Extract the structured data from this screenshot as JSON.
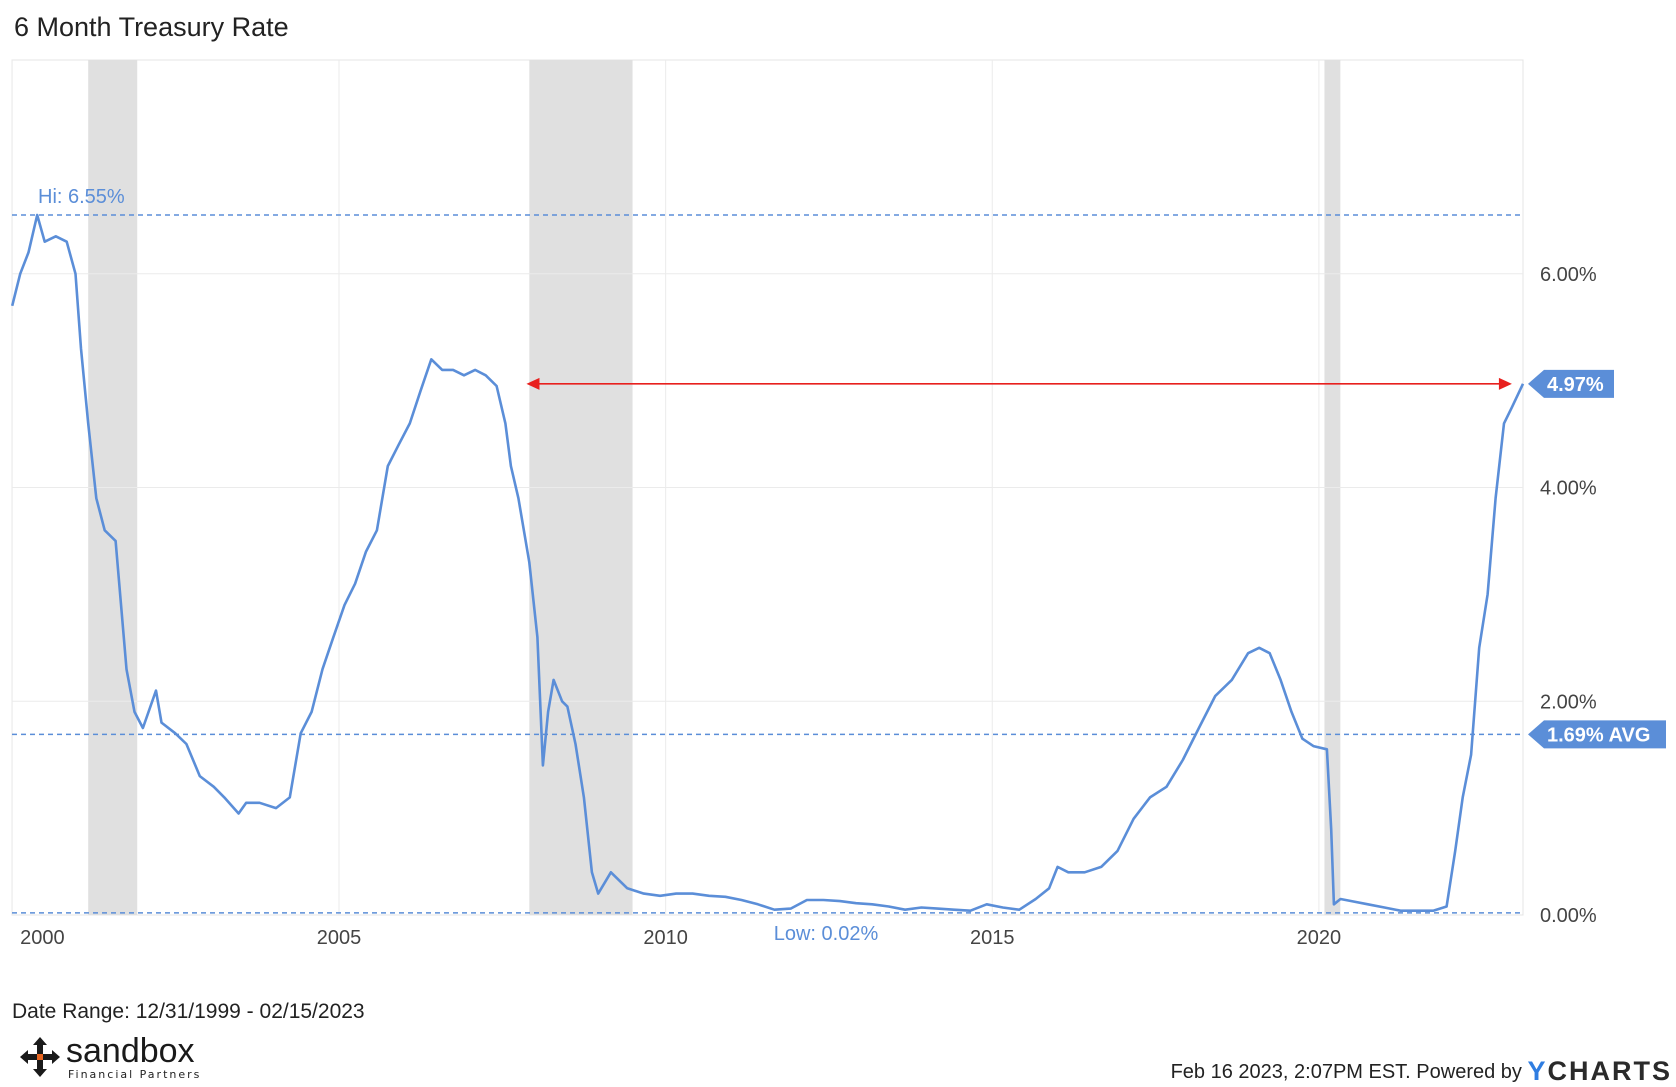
{
  "title": "6 Month Treasury Rate",
  "footer": {
    "date_range": "Date Range: 12/31/1999 - 02/15/2023",
    "timestamp": "Feb 16 2023, 2:07PM EST. Powered by",
    "source_brand": "CHARTS",
    "source_brand_y": "Y"
  },
  "logo": {
    "brand": "sandbox",
    "sub": "Financial Partners"
  },
  "colors": {
    "line": "#5b8ed8",
    "recession": "#e0e0e0",
    "arrow": "#e8201e",
    "grid": "#ebebeb",
    "label": "#5b8ed8"
  },
  "chart_data": {
    "type": "line",
    "title": "6 Month Treasury Rate",
    "xlabel": "",
    "ylabel": "",
    "x_range": [
      "1999-12-31",
      "2023-02-15"
    ],
    "ylim": [
      0,
      8
    ],
    "x_ticks": [
      {
        "label": "2000",
        "x": "2000-01-01"
      },
      {
        "label": "2005",
        "x": "2005-01-01"
      },
      {
        "label": "2010",
        "x": "2010-01-01"
      },
      {
        "label": "2015",
        "x": "2015-01-01"
      },
      {
        "label": "2020",
        "x": "2020-01-01"
      }
    ],
    "y_ticks": [
      {
        "label": "0.00%",
        "value": 0
      },
      {
        "label": "2.00%",
        "value": 2
      },
      {
        "label": "4.00%",
        "value": 4
      },
      {
        "label": "6.00%",
        "value": 6
      }
    ],
    "recessions": [
      [
        "2001-03-01",
        "2001-11-30"
      ],
      [
        "2007-12-01",
        "2009-06-30"
      ],
      [
        "2020-02-01",
        "2020-04-30"
      ]
    ],
    "reference_lines": [
      {
        "name": "hi",
        "value": 6.55,
        "label": "Hi: 6.55%"
      },
      {
        "name": "avg",
        "value": 1.69,
        "label": "1.69% AVG"
      },
      {
        "name": "low",
        "value": 0.02,
        "label": "Low: 0.02%"
      }
    ],
    "current_value": {
      "value": 4.97,
      "label": "4.97%"
    },
    "annotation_arrow": {
      "y": 4.97,
      "x_start": "2007-11-15",
      "x_end": "2022-12-15"
    },
    "series": [
      {
        "x": [
          "2000-01-01",
          "2000-02-15",
          "2000-04-01",
          "2000-05-20",
          "2000-07-01",
          "2000-09-01",
          "2000-11-01",
          "2000-12-20",
          "2001-01-20",
          "2001-03-01",
          "2001-04-15",
          "2001-06-01",
          "2001-08-01",
          "2001-10-01",
          "2001-11-15",
          "2002-01-01",
          "2002-03-15",
          "2002-04-15",
          "2002-07-01",
          "2002-09-01",
          "2002-11-15",
          "2003-02-01",
          "2003-04-01",
          "2003-06-20",
          "2003-08-01",
          "2003-10-15",
          "2004-01-15",
          "2004-04-01",
          "2004-06-01",
          "2004-08-01",
          "2004-10-01",
          "2004-12-01",
          "2005-02-01",
          "2005-04-01",
          "2005-06-01",
          "2005-08-01",
          "2005-10-01",
          "2005-12-01",
          "2006-02-01",
          "2006-04-01",
          "2006-06-01",
          "2006-08-01",
          "2006-10-01",
          "2006-12-01",
          "2007-02-01",
          "2007-04-01",
          "2007-06-01",
          "2007-07-20",
          "2007-08-20",
          "2007-10-01",
          "2007-12-01",
          "2008-01-15",
          "2008-02-15",
          "2008-03-15",
          "2008-04-15",
          "2008-06-01",
          "2008-07-01",
          "2008-08-15",
          "2008-10-01",
          "2008-11-15",
          "2008-12-20",
          "2009-03-01",
          "2009-06-01",
          "2009-09-01",
          "2009-12-01",
          "2010-03-01",
          "2010-06-01",
          "2010-09-01",
          "2010-12-01",
          "2011-03-01",
          "2011-06-01",
          "2011-09-01",
          "2011-12-01",
          "2012-03-01",
          "2012-06-01",
          "2012-09-01",
          "2012-12-01",
          "2013-03-01",
          "2013-06-01",
          "2013-09-01",
          "2013-12-01",
          "2014-03-01",
          "2014-06-01",
          "2014-09-01",
          "2014-12-01",
          "2015-03-01",
          "2015-06-01",
          "2015-09-01",
          "2015-11-15",
          "2016-01-01",
          "2016-03-01",
          "2016-06-01",
          "2016-09-01",
          "2016-12-01",
          "2017-03-01",
          "2017-06-01",
          "2017-09-01",
          "2017-12-01",
          "2018-03-01",
          "2018-06-01",
          "2018-09-01",
          "2018-12-01",
          "2019-02-01",
          "2019-04-01",
          "2019-06-01",
          "2019-08-01",
          "2019-10-01",
          "2019-12-01",
          "2020-02-15",
          "2020-03-10",
          "2020-03-25",
          "2020-05-01",
          "2020-07-01",
          "2020-10-01",
          "2021-01-01",
          "2021-04-01",
          "2021-07-01",
          "2021-10-01",
          "2021-12-15",
          "2022-02-01",
          "2022-03-15",
          "2022-05-01",
          "2022-06-15",
          "2022-08-01",
          "2022-09-15",
          "2022-11-01",
          "2022-12-15",
          "2023-02-15"
        ],
        "values": [
          5.7,
          6.0,
          6.2,
          6.55,
          6.3,
          6.35,
          6.3,
          6.0,
          5.3,
          4.6,
          3.9,
          3.6,
          3.5,
          2.3,
          1.9,
          1.75,
          2.1,
          1.8,
          1.7,
          1.6,
          1.3,
          1.2,
          1.1,
          0.95,
          1.05,
          1.05,
          1.0,
          1.1,
          1.7,
          1.9,
          2.3,
          2.6,
          2.9,
          3.1,
          3.4,
          3.6,
          4.2,
          4.4,
          4.6,
          4.9,
          5.2,
          5.1,
          5.1,
          5.05,
          5.1,
          5.05,
          4.95,
          4.6,
          4.2,
          3.9,
          3.3,
          2.6,
          1.4,
          1.9,
          2.2,
          2.0,
          1.95,
          1.6,
          1.1,
          0.4,
          0.2,
          0.4,
          0.25,
          0.2,
          0.18,
          0.2,
          0.2,
          0.18,
          0.17,
          0.14,
          0.1,
          0.05,
          0.06,
          0.14,
          0.14,
          0.13,
          0.11,
          0.1,
          0.08,
          0.05,
          0.07,
          0.06,
          0.05,
          0.04,
          0.1,
          0.07,
          0.05,
          0.15,
          0.25,
          0.45,
          0.4,
          0.4,
          0.45,
          0.6,
          0.9,
          1.1,
          1.2,
          1.45,
          1.75,
          2.05,
          2.2,
          2.45,
          2.5,
          2.45,
          2.2,
          1.9,
          1.65,
          1.58,
          1.55,
          0.8,
          0.1,
          0.15,
          0.13,
          0.1,
          0.07,
          0.04,
          0.04,
          0.04,
          0.08,
          0.6,
          1.1,
          1.5,
          2.5,
          3.0,
          3.9,
          4.6,
          4.75,
          4.97
        ]
      }
    ]
  }
}
